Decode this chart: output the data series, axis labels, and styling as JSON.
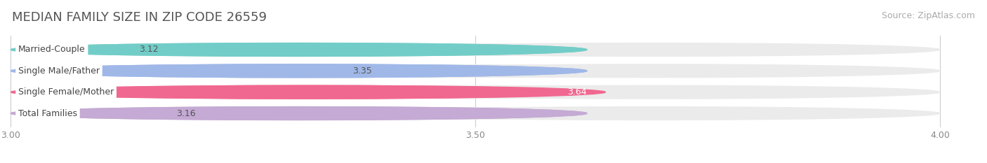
{
  "title": "MEDIAN FAMILY SIZE IN ZIP CODE 26559",
  "source": "Source: ZipAtlas.com",
  "categories": [
    "Married-Couple",
    "Single Male/Father",
    "Single Female/Mother",
    "Total Families"
  ],
  "values": [
    3.12,
    3.35,
    3.64,
    3.16
  ],
  "bar_colors": [
    "#72cdc8",
    "#a0b8e8",
    "#f06890",
    "#c4aad4"
  ],
  "label_colors": [
    "#555555",
    "#555555",
    "#ffffff",
    "#555555"
  ],
  "xlim": [
    3.0,
    4.0
  ],
  "xticks": [
    3.0,
    3.5,
    4.0
  ],
  "xtick_labels": [
    "3.00",
    "3.50",
    "4.00"
  ],
  "bg_color": "#ffffff",
  "bar_bg_color": "#ebebeb",
  "title_fontsize": 13,
  "source_fontsize": 9,
  "label_fontsize": 9,
  "tick_fontsize": 9,
  "category_fontsize": 9,
  "bar_height": 0.62,
  "bar_rounding": 0.3
}
